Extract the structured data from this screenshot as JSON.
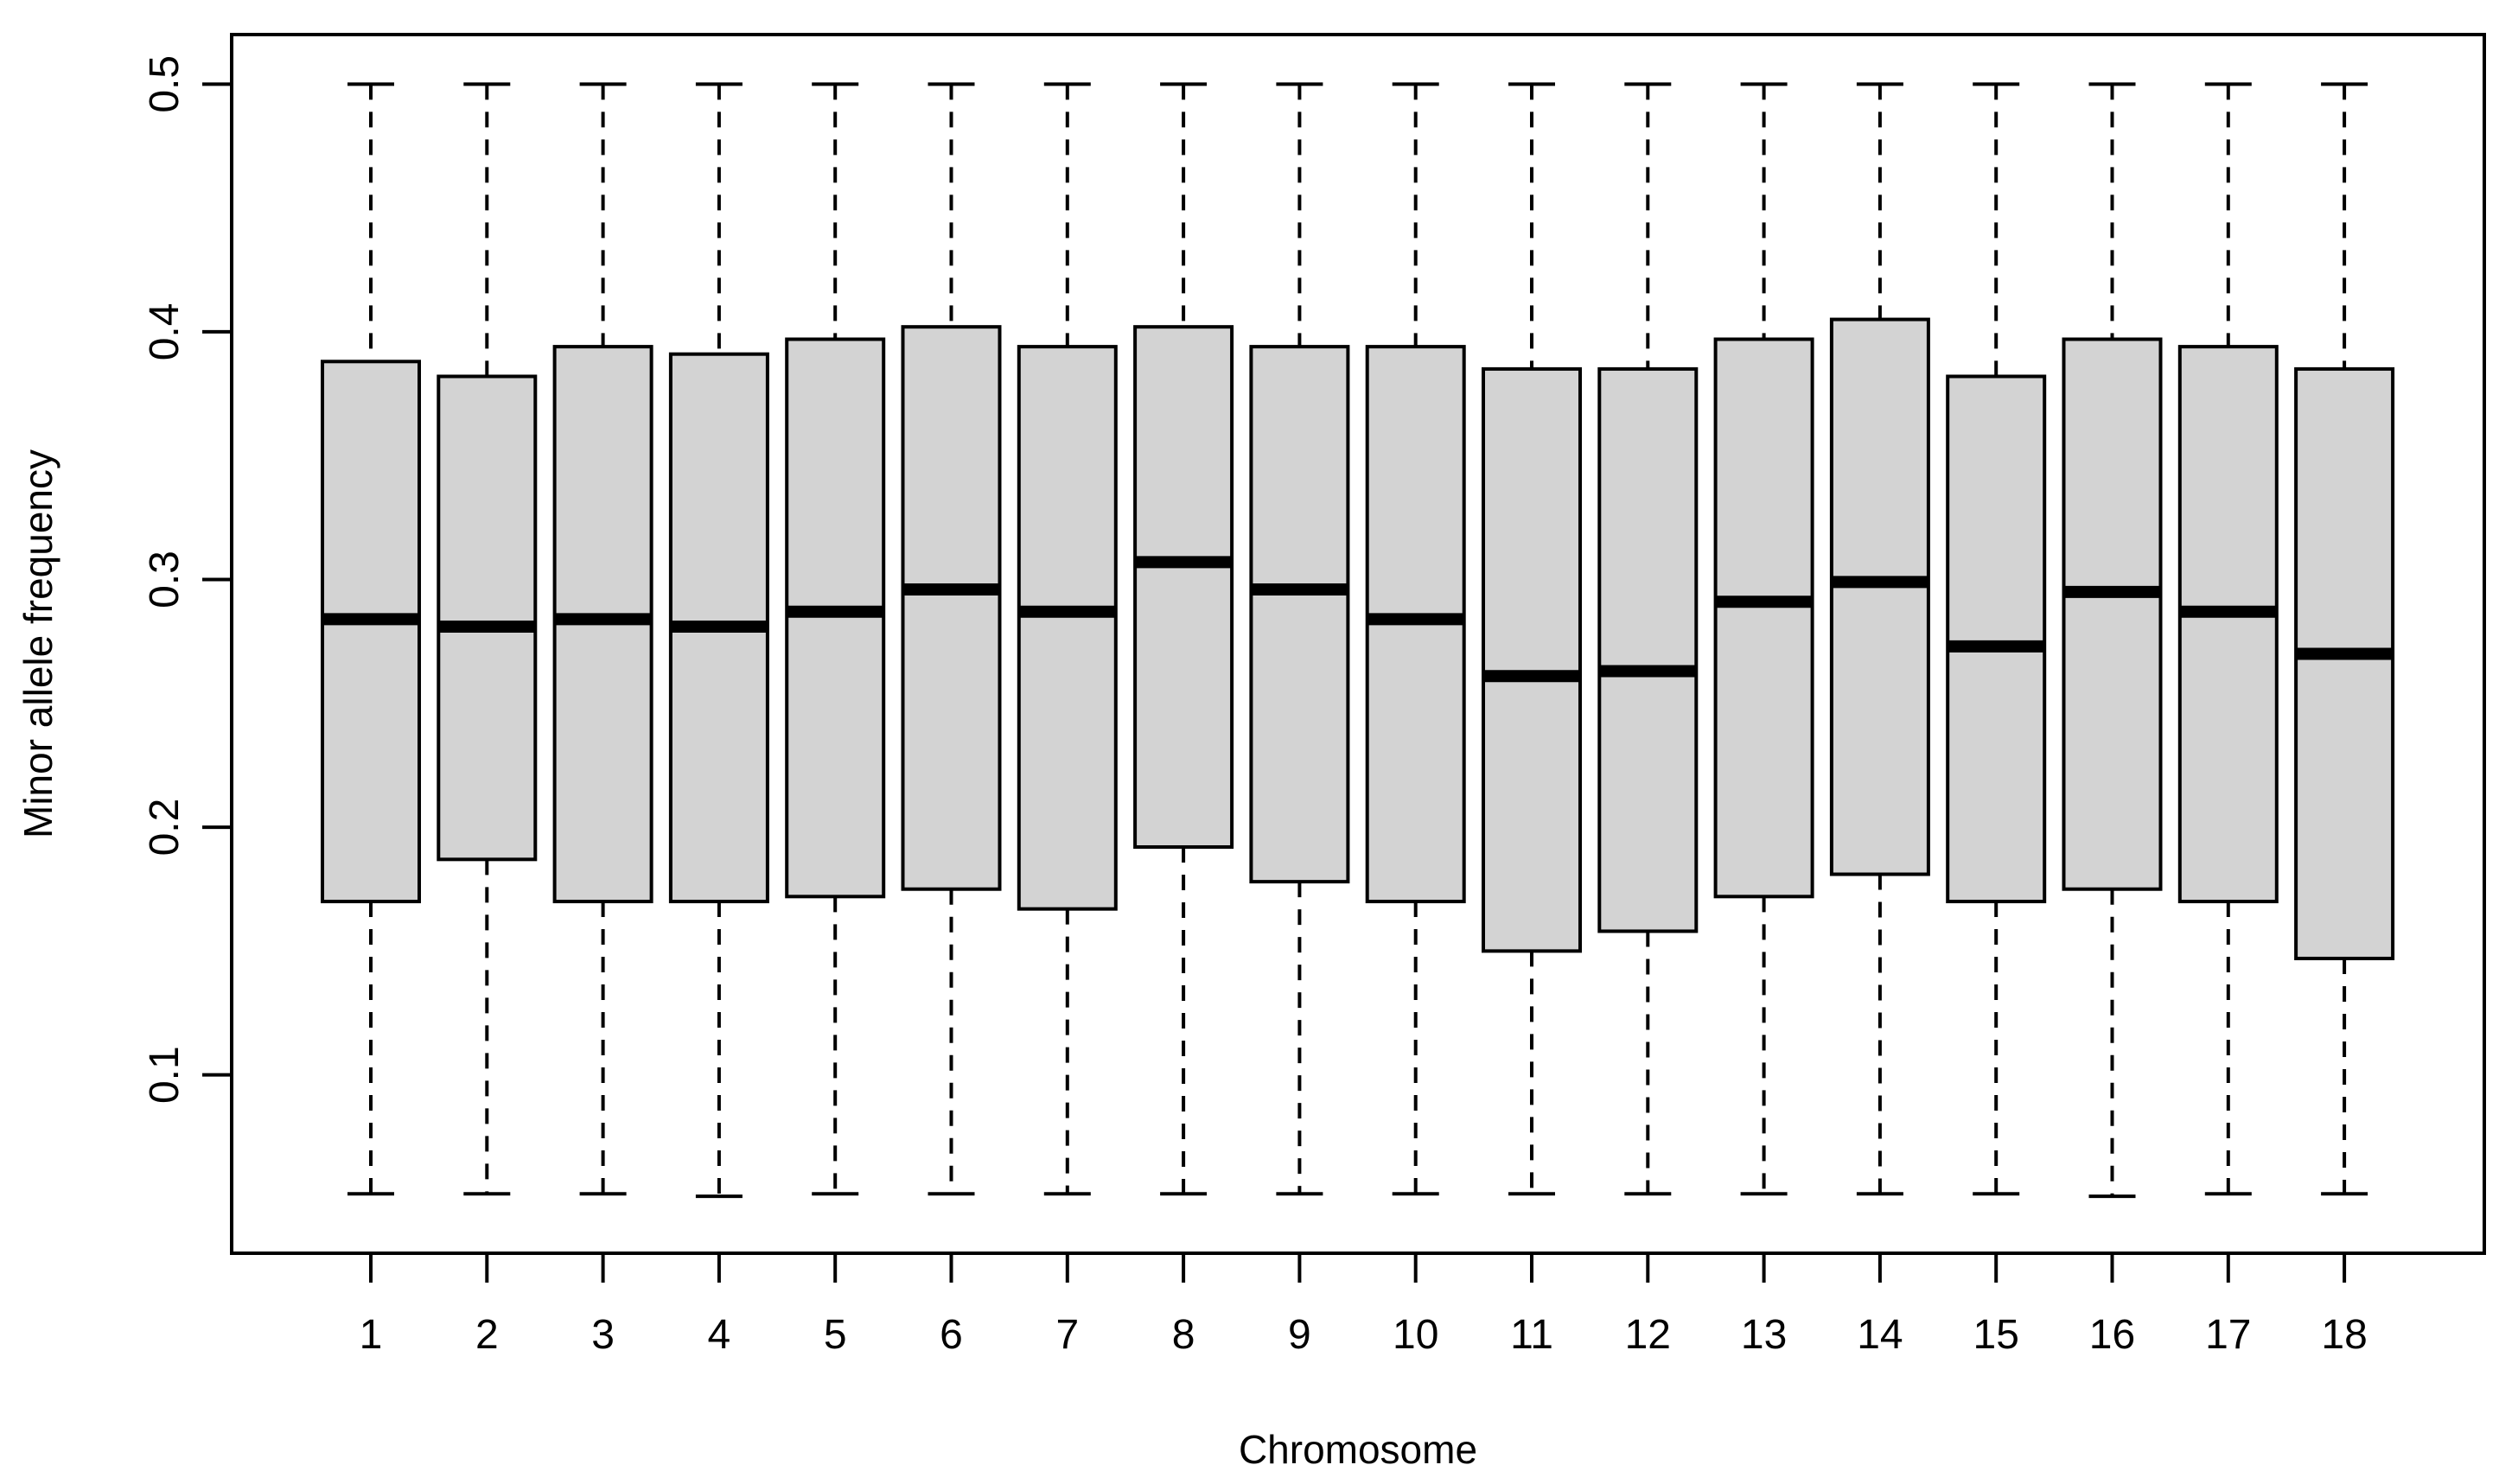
{
  "chart_data": {
    "type": "boxplot",
    "xlabel": "Chromosome",
    "ylabel": "Minor allele frequency",
    "categories": [
      "1",
      "2",
      "3",
      "4",
      "5",
      "6",
      "7",
      "8",
      "9",
      "10",
      "11",
      "12",
      "13",
      "14",
      "15",
      "16",
      "17",
      "18"
    ],
    "yticks": [
      0.1,
      0.2,
      0.3,
      0.4,
      0.5
    ],
    "ytick_labels": [
      "0.1",
      "0.2",
      "0.3",
      "0.4",
      "0.5"
    ],
    "ylim": [
      0.028,
      0.52
    ],
    "grid": false,
    "colors": {
      "box_fill": "#d3d3d3",
      "stroke": "#000000"
    },
    "boxes": [
      {
        "min": 0.052,
        "q1": 0.17,
        "median": 0.284,
        "q3": 0.388,
        "max": 0.5
      },
      {
        "min": 0.052,
        "q1": 0.187,
        "median": 0.281,
        "q3": 0.382,
        "max": 0.5
      },
      {
        "min": 0.052,
        "q1": 0.17,
        "median": 0.284,
        "q3": 0.394,
        "max": 0.5
      },
      {
        "min": 0.051,
        "q1": 0.17,
        "median": 0.281,
        "q3": 0.391,
        "max": 0.5
      },
      {
        "min": 0.052,
        "q1": 0.172,
        "median": 0.287,
        "q3": 0.397,
        "max": 0.5
      },
      {
        "min": 0.052,
        "q1": 0.175,
        "median": 0.296,
        "q3": 0.402,
        "max": 0.5
      },
      {
        "min": 0.052,
        "q1": 0.167,
        "median": 0.287,
        "q3": 0.394,
        "max": 0.5
      },
      {
        "min": 0.052,
        "q1": 0.192,
        "median": 0.307,
        "q3": 0.402,
        "max": 0.5
      },
      {
        "min": 0.052,
        "q1": 0.178,
        "median": 0.296,
        "q3": 0.394,
        "max": 0.5
      },
      {
        "min": 0.052,
        "q1": 0.17,
        "median": 0.284,
        "q3": 0.394,
        "max": 0.5
      },
      {
        "min": 0.052,
        "q1": 0.15,
        "median": 0.261,
        "q3": 0.385,
        "max": 0.5
      },
      {
        "min": 0.052,
        "q1": 0.158,
        "median": 0.263,
        "q3": 0.385,
        "max": 0.5
      },
      {
        "min": 0.052,
        "q1": 0.172,
        "median": 0.291,
        "q3": 0.397,
        "max": 0.5
      },
      {
        "min": 0.052,
        "q1": 0.181,
        "median": 0.299,
        "q3": 0.405,
        "max": 0.5
      },
      {
        "min": 0.052,
        "q1": 0.17,
        "median": 0.273,
        "q3": 0.382,
        "max": 0.5
      },
      {
        "min": 0.051,
        "q1": 0.175,
        "median": 0.295,
        "q3": 0.397,
        "max": 0.5
      },
      {
        "min": 0.052,
        "q1": 0.17,
        "median": 0.287,
        "q3": 0.394,
        "max": 0.5
      },
      {
        "min": 0.052,
        "q1": 0.147,
        "median": 0.27,
        "q3": 0.385,
        "max": 0.5
      }
    ]
  }
}
